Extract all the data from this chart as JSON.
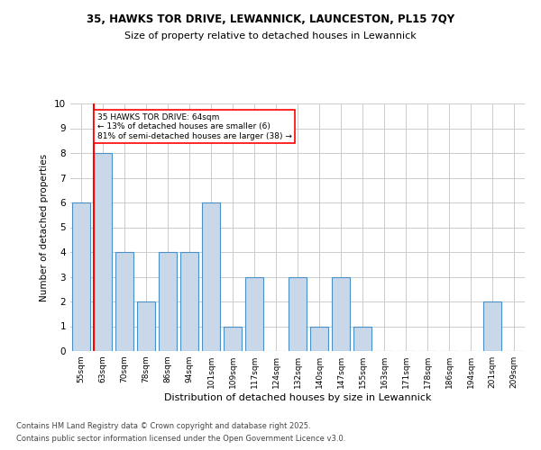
{
  "title": "35, HAWKS TOR DRIVE, LEWANNICK, LAUNCESTON, PL15 7QY",
  "subtitle": "Size of property relative to detached houses in Lewannick",
  "xlabel": "Distribution of detached houses by size in Lewannick",
  "ylabel": "Number of detached properties",
  "categories": [
    "55sqm",
    "63sqm",
    "70sqm",
    "78sqm",
    "86sqm",
    "94sqm",
    "101sqm",
    "109sqm",
    "117sqm",
    "124sqm",
    "132sqm",
    "140sqm",
    "147sqm",
    "155sqm",
    "163sqm",
    "171sqm",
    "178sqm",
    "186sqm",
    "194sqm",
    "201sqm",
    "209sqm"
  ],
  "values": [
    6,
    8,
    4,
    2,
    4,
    4,
    6,
    1,
    3,
    0,
    3,
    1,
    3,
    1,
    0,
    0,
    0,
    0,
    0,
    2,
    0
  ],
  "bar_color": "#c8d8e8",
  "bar_edge_color": "#4a90c4",
  "red_line_index": 1,
  "annotation_text": "35 HAWKS TOR DRIVE: 64sqm\n← 13% of detached houses are smaller (6)\n81% of semi-detached houses are larger (38) →",
  "annotation_box_color": "white",
  "annotation_box_edge": "red",
  "ylim": [
    0,
    10
  ],
  "yticks": [
    0,
    1,
    2,
    3,
    4,
    5,
    6,
    7,
    8,
    9,
    10
  ],
  "footer_line1": "Contains HM Land Registry data © Crown copyright and database right 2025.",
  "footer_line2": "Contains public sector information licensed under the Open Government Licence v3.0.",
  "bg_color": "white",
  "grid_color": "#cccccc"
}
